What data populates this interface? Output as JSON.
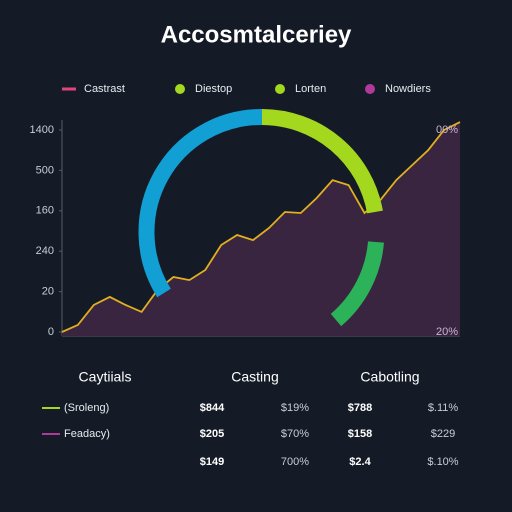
{
  "chart_data": {
    "type": "area",
    "title": "Accosmtalceriey",
    "categories": [
      null,
      null,
      null,
      null,
      null,
      null,
      null,
      null,
      null,
      null,
      null,
      null,
      null,
      null,
      null,
      null,
      null,
      null,
      null,
      null,
      null,
      null,
      null,
      null,
      null,
      null
    ],
    "values": [
      0,
      49,
      187,
      243,
      187,
      139,
      291,
      381,
      360,
      430,
      603,
      672,
      637,
      721,
      832,
      825,
      929,
      1053,
      1018,
      825,
      915,
      1053,
      1157,
      1261,
      1400,
      1455
    ],
    "color": "#e0b020",
    "fill": "#3a2540",
    "ylim": [
      0,
      1500
    ],
    "yticks": [
      0,
      {
        "value": 280,
        "label": "20"
      },
      {
        "value": 560,
        "label": "240"
      },
      {
        "value": 840,
        "label": "160"
      },
      {
        "value": 1120,
        "label": "500"
      },
      1400
    ],
    "annotations": [
      "00%",
      "20%"
    ]
  },
  "legend": [
    {
      "label": "Castrast",
      "color": "#e0457a"
    },
    {
      "label": "Diestop",
      "color": "#a4d81e"
    },
    {
      "label": "Lorten",
      "color": "#a4d81e"
    },
    {
      "label": "Nowdiers",
      "color": "#b03a9a"
    }
  ],
  "table": {
    "headers": [
      "Caytiials",
      "Casting",
      "Cabotling"
    ],
    "rows": [
      {
        "label": "(Sroleng)",
        "color": "#a4d81e",
        "cells": [
          "$844",
          "$19%",
          "$788",
          "$.11%"
        ]
      },
      {
        "label": "Feadacy)",
        "color": "#b03a9a",
        "cells": [
          "$205",
          "$70%",
          "$158",
          "$229"
        ]
      },
      {
        "cells": [
          "$149",
          "700%",
          "$2.4",
          "$.10%"
        ]
      }
    ]
  }
}
